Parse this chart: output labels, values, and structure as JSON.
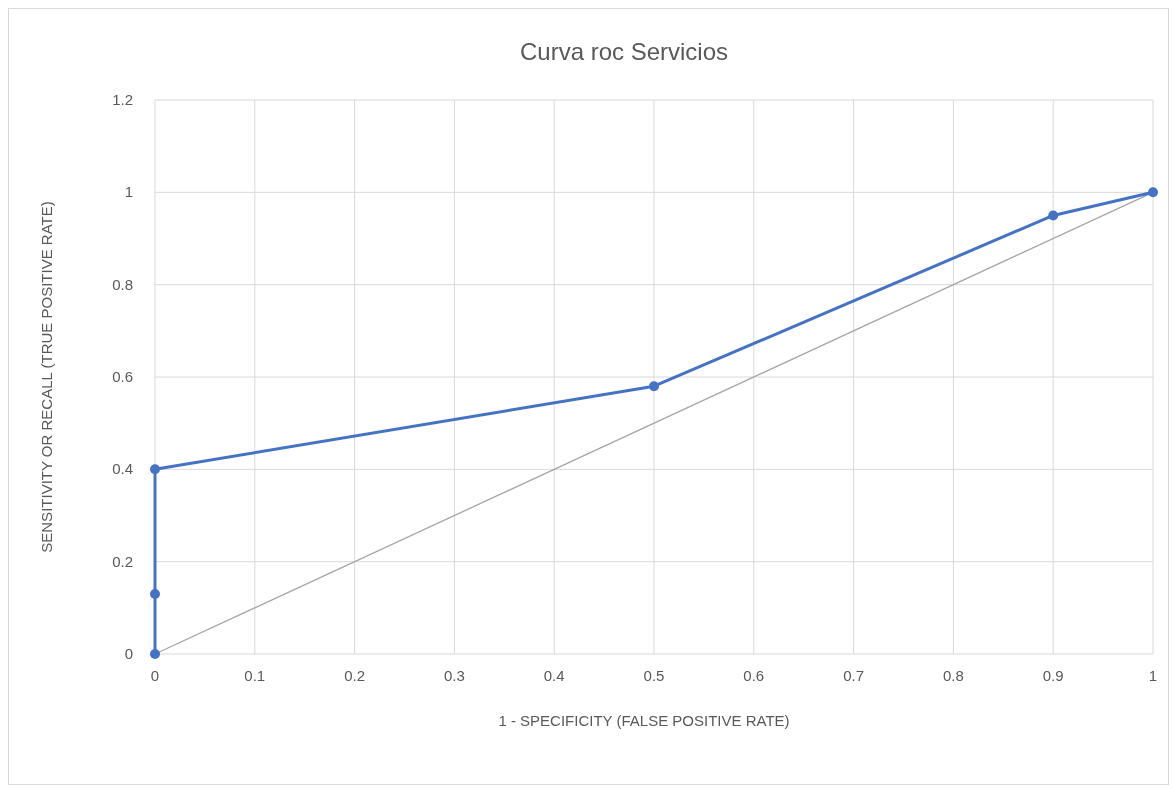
{
  "chart_data": {
    "type": "line",
    "title": "Curva roc Servicios",
    "xlabel": "1 - SPECIFICITY (FALSE  POSITIVE RATE)",
    "ylabel": "SENSITIVITY  OR RECALL  (TRUE  POSITIVE RATE)",
    "xlim": [
      0,
      1
    ],
    "xticks": [
      0,
      0.1,
      0.2,
      0.3,
      0.4,
      0.5,
      0.6,
      0.7,
      0.8,
      0.9,
      1
    ],
    "ylim": [
      0,
      1.2
    ],
    "yticks": [
      0,
      0.2,
      0.4,
      0.6,
      0.8,
      1,
      1.2
    ],
    "grid": true,
    "series": [
      {
        "color": "#4472c4",
        "marker": "circle",
        "x": [
          0,
          0,
          0,
          0.5,
          0.9,
          1
        ],
        "values": [
          0,
          0.13,
          0.4,
          0.58,
          0.95,
          1
        ]
      },
      {
        "color": "#a5a5a5",
        "marker": "none",
        "x": [
          0,
          1
        ],
        "values": [
          0,
          1
        ]
      }
    ]
  }
}
